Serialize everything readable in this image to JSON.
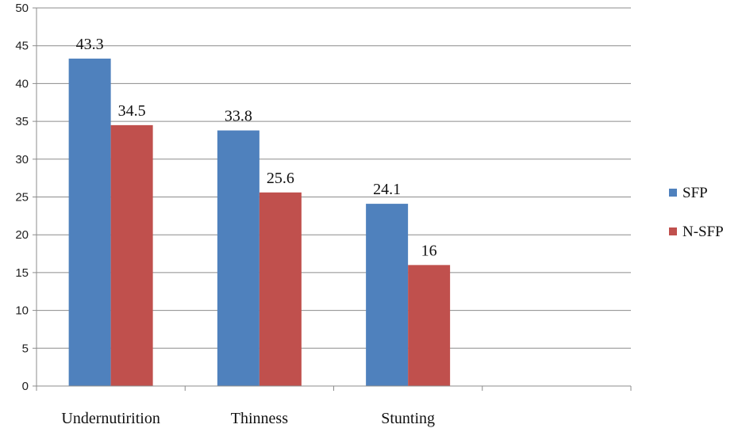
{
  "chart_data": {
    "type": "bar",
    "categories": [
      "Undernutirition",
      "Thinness",
      "Stunting",
      ""
    ],
    "series": [
      {
        "name": "SFP",
        "values": [
          43.3,
          33.8,
          24.1,
          null
        ],
        "color": "#4F81BD"
      },
      {
        "name": "N-SFP",
        "values": [
          34.5,
          25.6,
          16,
          null
        ],
        "color": "#C0504D"
      }
    ],
    "data_labels": [
      [
        "43.3",
        "33.8",
        "24.1",
        ""
      ],
      [
        "34.5",
        "25.6",
        "16",
        ""
      ]
    ],
    "ylim": [
      0,
      50
    ],
    "yticks": [
      0,
      5,
      10,
      15,
      20,
      25,
      30,
      35,
      40,
      45,
      50
    ],
    "grid": true,
    "legend_position": "right",
    "title": "",
    "xlabel": "",
    "ylabel": ""
  },
  "legend": {
    "items": [
      {
        "label": "SFP",
        "color": "#4F81BD"
      },
      {
        "label": "N-SFP",
        "color": "#C0504D"
      }
    ]
  }
}
